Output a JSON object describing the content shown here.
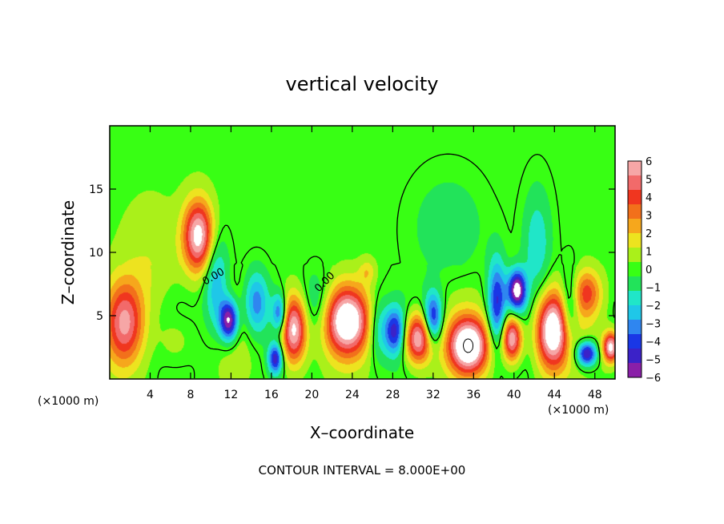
{
  "chart_data": {
    "type": "heatmap",
    "title": "vertical velocity",
    "xlabel": "X–coordinate",
    "ylabel": "Z–coordinate",
    "x_unit": "(×1000 m)",
    "x_unit_right": "(×1000 m)",
    "xlim": [
      0,
      50
    ],
    "ylim": [
      0,
      20
    ],
    "xticks": [
      4,
      8,
      12,
      16,
      20,
      24,
      28,
      32,
      36,
      40,
      44,
      48
    ],
    "yticks": [
      5,
      10,
      15
    ],
    "colorbar": {
      "min": -6,
      "max": 6,
      "ticks": [
        6,
        5,
        4,
        3,
        2,
        1,
        0,
        -1,
        -2,
        -3,
        -4,
        -5,
        -6
      ],
      "tick_labels": [
        "6",
        "5",
        "4",
        "3",
        "2",
        "1",
        "0",
        "−1",
        "−2",
        "−3",
        "−4",
        "−5",
        "−6"
      ],
      "colors": [
        "#8a1fa8",
        "#3b22c8",
        "#1a37e6",
        "#2f86f0",
        "#1fc7e8",
        "#20e6c8",
        "#22e35a",
        "#38ff14",
        "#aaf01a",
        "#ede31f",
        "#f6a71c",
        "#f2701b",
        "#f0361f",
        "#f26a6a",
        "#f6a6a6"
      ],
      "over_color": "#ffffff",
      "under_color": "#ffffff"
    },
    "contour_label": "0.00",
    "footer": "CONTOUR INTERVAL = 8.000E+00",
    "features": [
      {
        "x": 1.5,
        "z": 4.5,
        "w": 1.8,
        "h": 3.2,
        "v": 4.5
      },
      {
        "x": 8.8,
        "z": 11.3,
        "w": 1.5,
        "h": 2.8,
        "v": 6.5
      },
      {
        "x": 10.5,
        "z": 7.5,
        "w": 1.2,
        "h": 4.0,
        "v": -3.0
      },
      {
        "x": 11.8,
        "z": 4.6,
        "w": 0.9,
        "h": 1.6,
        "v": -6.5
      },
      {
        "x": 14.5,
        "z": 6.0,
        "w": 1.2,
        "h": 2.5,
        "v": -3.5
      },
      {
        "x": 16.4,
        "z": 1.6,
        "w": 0.7,
        "h": 1.2,
        "v": -5.0
      },
      {
        "x": 18.2,
        "z": 3.9,
        "w": 1.3,
        "h": 2.7,
        "v": 7.0
      },
      {
        "x": 16.8,
        "z": 5.2,
        "w": 0.7,
        "h": 1.5,
        "v": -4.0
      },
      {
        "x": 23.5,
        "z": 4.6,
        "w": 2.2,
        "h": 2.6,
        "v": 7.0
      },
      {
        "x": 25.5,
        "z": 8.5,
        "w": 0.8,
        "h": 1.0,
        "v": 1.5
      },
      {
        "x": 28.2,
        "z": 3.8,
        "w": 1.0,
        "h": 1.8,
        "v": -4.5
      },
      {
        "x": 30.5,
        "z": 3.2,
        "w": 1.4,
        "h": 2.0,
        "v": 6.5
      },
      {
        "x": 32.0,
        "z": 4.8,
        "w": 0.9,
        "h": 2.0,
        "v": -5.0
      },
      {
        "x": 35.5,
        "z": 2.6,
        "w": 2.0,
        "h": 2.2,
        "v": 7.5
      },
      {
        "x": 38.3,
        "z": 6.0,
        "w": 0.9,
        "h": 3.5,
        "v": -4.5
      },
      {
        "x": 39.8,
        "z": 3.2,
        "w": 1.0,
        "h": 1.8,
        "v": 6.5
      },
      {
        "x": 40.3,
        "z": 7.0,
        "w": 0.9,
        "h": 1.6,
        "v": -6.5
      },
      {
        "x": 42.3,
        "z": 10.5,
        "w": 1.4,
        "h": 4.5,
        "v": -2.0
      },
      {
        "x": 43.8,
        "z": 3.8,
        "w": 1.7,
        "h": 3.0,
        "v": 7.5
      },
      {
        "x": 47.2,
        "z": 6.8,
        "w": 1.4,
        "h": 1.8,
        "v": 3.5
      },
      {
        "x": 47.2,
        "z": 2.0,
        "w": 1.0,
        "h": 1.0,
        "v": -6.0
      },
      {
        "x": 49.6,
        "z": 2.5,
        "w": 0.8,
        "h": 1.2,
        "v": 6.5
      },
      {
        "x": 6.5,
        "z": 3.0,
        "w": 1.8,
        "h": 2.0,
        "v": 1.2
      },
      {
        "x": 20.5,
        "z": 6.0,
        "w": 1.5,
        "h": 2.5,
        "v": -1.5
      },
      {
        "x": 26.5,
        "z": 4.0,
        "w": 1.0,
        "h": 2.5,
        "v": -2.0
      },
      {
        "x": 33.5,
        "z": 12.0,
        "w": 3.5,
        "h": 4.0,
        "v": -1.2
      },
      {
        "x": 45.5,
        "z": 5.5,
        "w": 0.9,
        "h": 3.0,
        "v": -3.0
      },
      {
        "x": 4.0,
        "z": 9.0,
        "w": 3.0,
        "h": 5.0,
        "v": 1.0
      }
    ]
  }
}
